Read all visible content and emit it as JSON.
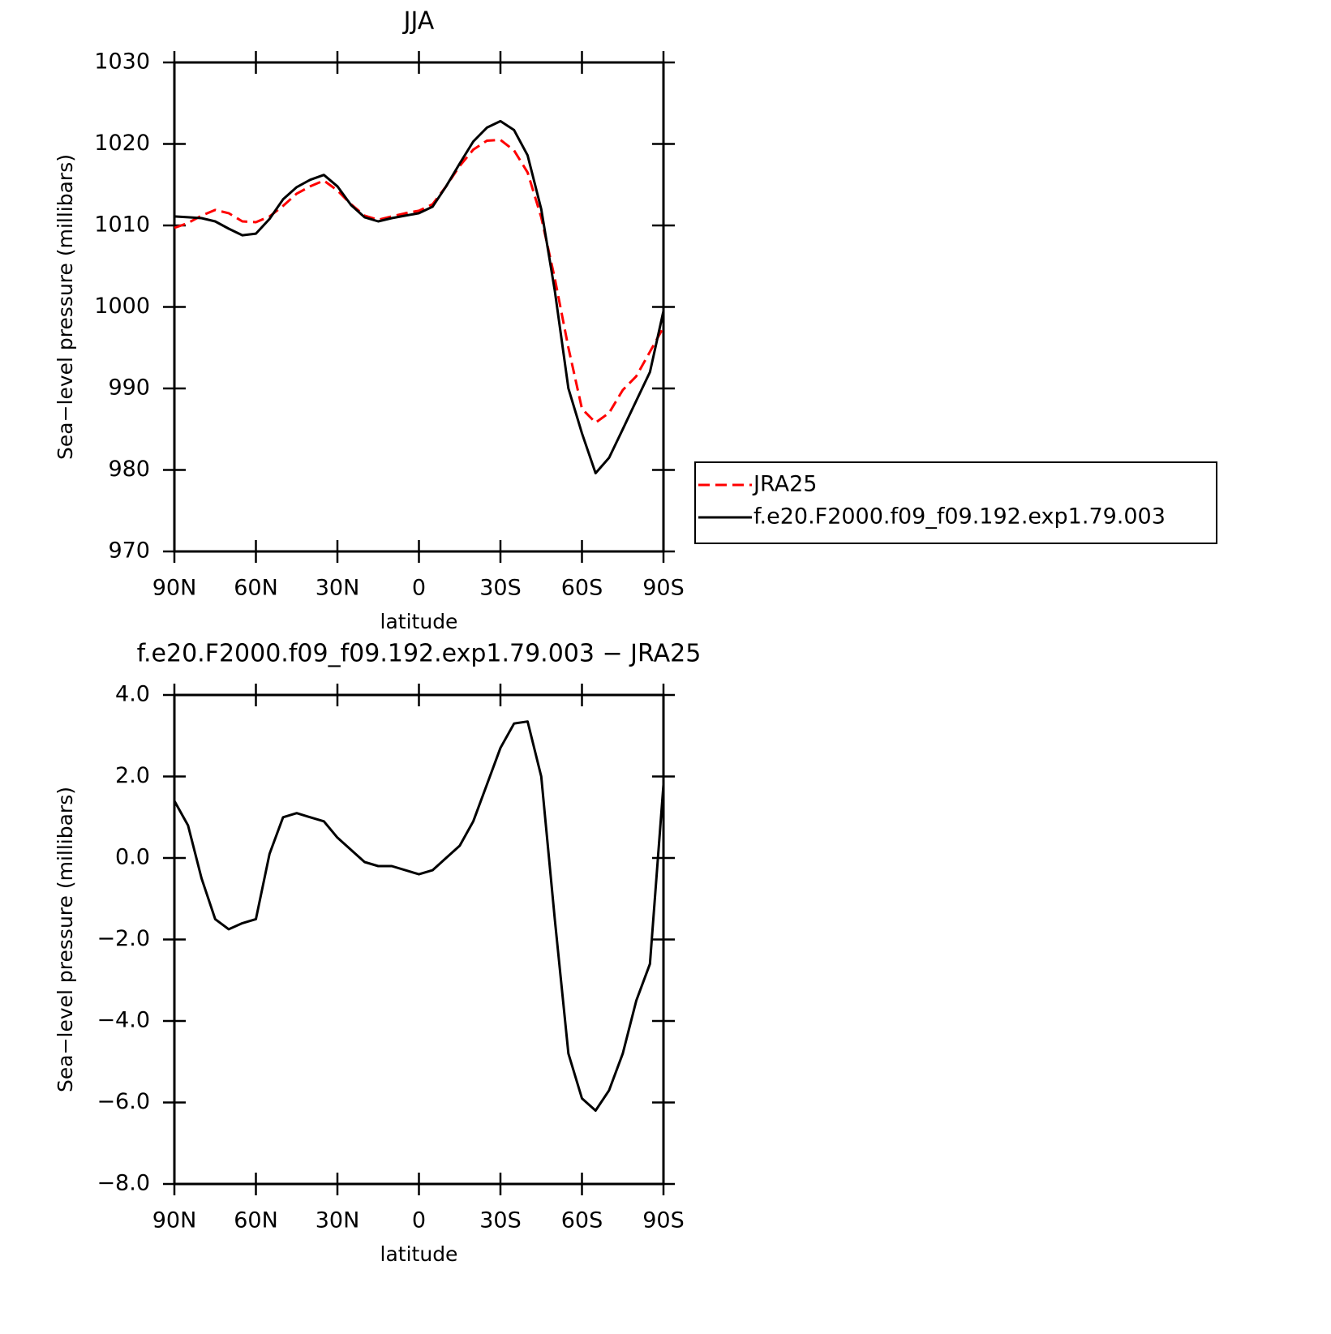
{
  "chart_data": [
    {
      "type": "line",
      "title": "JJA",
      "xlabel": "latitude",
      "ylabel": "Sea−level pressure (millibars)",
      "x": [
        90,
        85,
        80,
        75,
        70,
        65,
        60,
        55,
        50,
        45,
        40,
        35,
        30,
        25,
        20,
        15,
        10,
        5,
        0,
        -5,
        -10,
        -15,
        -20,
        -25,
        -30,
        -35,
        -40,
        -45,
        -50,
        -55,
        -60,
        -65,
        -70,
        -75,
        -80,
        -85,
        -90
      ],
      "series": [
        {
          "name": "JRA25",
          "color": "#ff0000",
          "dashed": true,
          "values": [
            1009.7,
            1010.3,
            1011.2,
            1011.9,
            1011.5,
            1010.5,
            1010.4,
            1011.1,
            1012.4,
            1013.9,
            1014.8,
            1015.5,
            1014.3,
            1012.6,
            1011.2,
            1010.7,
            1011.1,
            1011.5,
            1011.8,
            1012.6,
            1014.8,
            1017.3,
            1019.3,
            1020.4,
            1020.5,
            1019.2,
            1016.5,
            1011.0,
            1003.5,
            995.0,
            987.5,
            985.8,
            987.0,
            989.8,
            991.5,
            994.5,
            997.5
          ]
        },
        {
          "name": "f.e20.F2000.f09_f09.192.exp1.79.003",
          "color": "#000000",
          "dashed": false,
          "values": [
            1011.1,
            1011.0,
            1010.9,
            1010.5,
            1009.6,
            1008.8,
            1009.0,
            1010.8,
            1013.2,
            1014.7,
            1015.6,
            1016.2,
            1014.8,
            1012.5,
            1011.0,
            1010.5,
            1010.9,
            1011.2,
            1011.5,
            1012.3,
            1014.8,
            1017.6,
            1020.3,
            1022.0,
            1022.8,
            1021.7,
            1018.6,
            1012.0,
            1002.0,
            990.0,
            984.5,
            979.6,
            981.5,
            985.0,
            988.5,
            992.0,
            999.5
          ]
        }
      ],
      "xlim": [
        90,
        -90
      ],
      "ylim": [
        970,
        1030
      ],
      "xticks": [
        {
          "value": 90,
          "label": "90N"
        },
        {
          "value": 60,
          "label": "60N"
        },
        {
          "value": 30,
          "label": "30N"
        },
        0,
        {
          "value": -30,
          "label": "30S"
        },
        {
          "value": -60,
          "label": "60S"
        },
        {
          "value": -90,
          "label": "90S"
        }
      ],
      "yticks": [
        970,
        980,
        990,
        1000,
        1010,
        1020,
        1030
      ],
      "legend": "right"
    },
    {
      "type": "line",
      "title": "f.e20.F2000.f09_f09.192.exp1.79.003 − JRA25",
      "xlabel": "latitude",
      "ylabel": "Sea−level pressure (millibars)",
      "x": [
        90,
        85,
        80,
        75,
        70,
        65,
        60,
        55,
        50,
        45,
        40,
        35,
        30,
        25,
        20,
        15,
        10,
        5,
        0,
        -5,
        -10,
        -15,
        -20,
        -25,
        -30,
        -35,
        -40,
        -45,
        -50,
        -55,
        -60,
        -65,
        -70,
        -75,
        -80,
        -85,
        -90
      ],
      "values": [
        1.4,
        0.8,
        -0.5,
        -1.5,
        -1.75,
        -1.6,
        -1.5,
        0.1,
        1.0,
        1.1,
        1.0,
        0.9,
        0.5,
        0.2,
        -0.1,
        -0.2,
        -0.2,
        -0.3,
        -0.4,
        -0.3,
        0.0,
        0.3,
        0.9,
        1.8,
        2.7,
        3.3,
        3.35,
        2.0,
        -1.5,
        -4.8,
        -5.9,
        -6.2,
        -5.7,
        -4.8,
        -3.5,
        -2.6,
        1.8
      ],
      "color": "#000000",
      "xlim": [
        90,
        -90
      ],
      "ylim": [
        -8,
        4
      ],
      "xticks": [
        {
          "value": 90,
          "label": "90N"
        },
        {
          "value": 60,
          "label": "60N"
        },
        {
          "value": 30,
          "label": "30N"
        },
        0,
        {
          "value": -30,
          "label": "30S"
        },
        {
          "value": -60,
          "label": "60S"
        },
        {
          "value": -90,
          "label": "90S"
        }
      ],
      "yticks": [
        {
          "value": -8,
          "label": "−8.0"
        },
        {
          "value": -6,
          "label": "−6.0"
        },
        {
          "value": -4,
          "label": "−4.0"
        },
        {
          "value": -2,
          "label": "−2.0"
        },
        {
          "value": 0,
          "label": "0.0"
        },
        {
          "value": 2,
          "label": "2.0"
        },
        {
          "value": 4,
          "label": "4.0"
        }
      ]
    }
  ]
}
